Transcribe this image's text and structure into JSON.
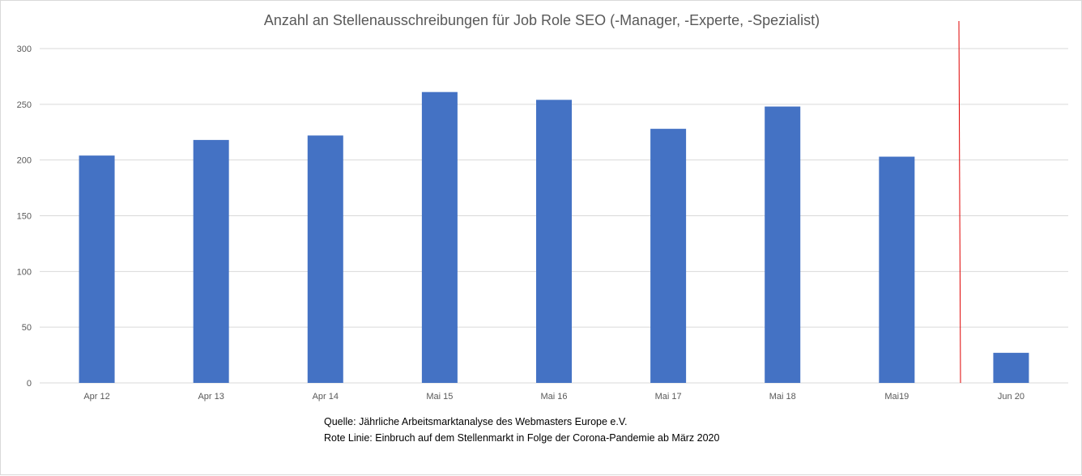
{
  "chart_data": {
    "type": "bar",
    "title": "Anzahl an Stellenausschreibungen für Job Role SEO (-Manager, -Experte, -Spezialist)",
    "categories": [
      "Apr 12",
      "Apr 13",
      "Apr 14",
      "Mai 15",
      "Mai 16",
      "Mai 17",
      "Mai 18",
      "Mai19",
      "Jun 20"
    ],
    "values": [
      204,
      218,
      222,
      261,
      254,
      228,
      248,
      203,
      27
    ],
    "ylim": [
      0,
      300
    ],
    "yticks": [
      "0",
      "50",
      "100",
      "150",
      "200",
      "250",
      "300"
    ],
    "grid": true,
    "legend": "none",
    "colors": {
      "bar": "#4472c4",
      "marker_line": "#e00000",
      "grid": "#d9d9d9",
      "axis_text": "#595959"
    }
  },
  "notes": {
    "source": "Quelle: Jährliche Arbeitsmarktanalyse des Webmasters Europe e.V.",
    "red_line": "Rote Linie: Einbruch auf dem Stellenmarkt in Folge der Corona-Pandemie ab März 2020"
  }
}
